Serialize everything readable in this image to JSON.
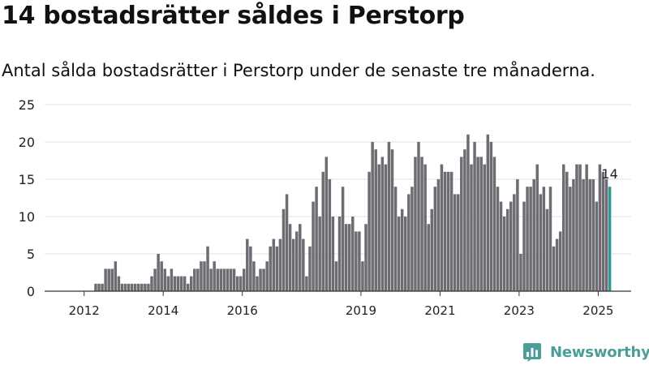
{
  "title": "14 bostadsrätter såldes i Perstorp",
  "subtitle": "Antal sålda bostadsrätter i Perstorp under de senaste tre månaderna.",
  "brand": {
    "name": "Newsworthy",
    "icon": "newsworthy-logo-icon",
    "color": "#4a9e98"
  },
  "colors": {
    "bar": "#6d6c72",
    "highlight": "#2e9a96",
    "grid": "#e2e2e2",
    "axis": "#333333",
    "text": "#222222"
  },
  "chart_data": {
    "type": "bar",
    "title": "14 bostadsrätter såldes i Perstorp",
    "subtitle": "Antal sålda bostadsrätter i Perstorp under de senaste tre månaderna.",
    "xlabel": "",
    "ylabel": "",
    "ylim": [
      0,
      25
    ],
    "yticks": [
      0,
      5,
      10,
      15,
      20,
      25
    ],
    "xticks": [
      "2012",
      "2014",
      "2016",
      "2019",
      "2021",
      "2023",
      "2025"
    ],
    "x_range": [
      "2011-07",
      "2026-05"
    ],
    "grid": true,
    "legend": "none",
    "frequency": "monthly, rolling three-month total",
    "start_month": "2012-10",
    "values": [
      1,
      1,
      1,
      3,
      3,
      3,
      4,
      2,
      1,
      1,
      1,
      1,
      1,
      1,
      1,
      1,
      1,
      2,
      3,
      5,
      4,
      3,
      2,
      3,
      2,
      2,
      2,
      2,
      1,
      2,
      3,
      3,
      4,
      4,
      6,
      3,
      4,
      3,
      3,
      3,
      3,
      3,
      3,
      2,
      2,
      3,
      7,
      6,
      4,
      2,
      3,
      3,
      4,
      6,
      7,
      6,
      7,
      11,
      13,
      9,
      7,
      8,
      9,
      7,
      2,
      6,
      12,
      14,
      10,
      16,
      18,
      15,
      10,
      4,
      10,
      14,
      9,
      9,
      10,
      8,
      8,
      4,
      9,
      16,
      20,
      19,
      17,
      18,
      17,
      20,
      19,
      14,
      10,
      11,
      10,
      13,
      14,
      18,
      20,
      18,
      17,
      9,
      11,
      14,
      15,
      17,
      16,
      16,
      16,
      13,
      13,
      18,
      19,
      21,
      17,
      20,
      18,
      18,
      17,
      21,
      20,
      18,
      14,
      12,
      10,
      11,
      12,
      13,
      15,
      5,
      12,
      14,
      14,
      15,
      17,
      13,
      14,
      11,
      14,
      6,
      7,
      8,
      17,
      16,
      14,
      15,
      17,
      17,
      15,
      17,
      15,
      15,
      12,
      17,
      16,
      15,
      14
    ],
    "highlight_index": 156,
    "highlight_label": "14"
  }
}
